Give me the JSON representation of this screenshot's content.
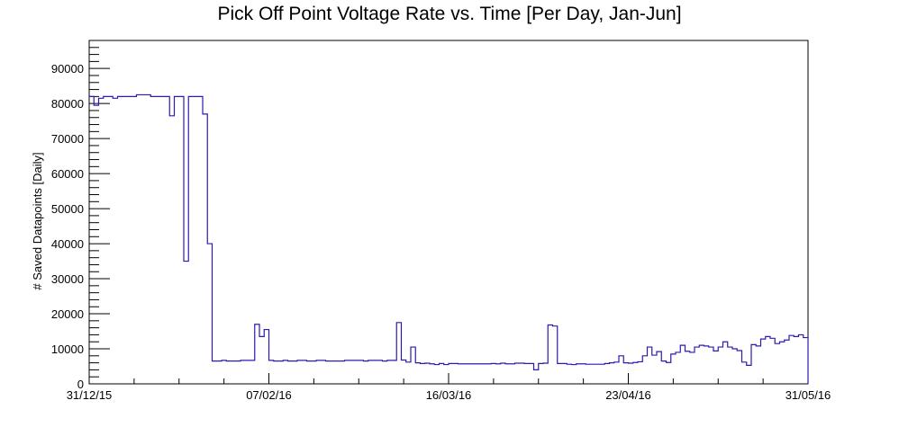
{
  "chart_data": {
    "type": "line",
    "title": "Pick Off Point Voltage Rate vs. Time [Per Day, Jan-Jun]",
    "xlabel": "",
    "ylabel": "# Saved Datapoints [Daily]",
    "xlim": [
      "2015-12-31",
      "2016-05-31"
    ],
    "ylim": [
      0,
      98000
    ],
    "x_ticks": [
      {
        "date": "2015-12-31",
        "label": "31/12/15"
      },
      {
        "date": "2016-02-07",
        "label": "07/02/16"
      },
      {
        "date": "2016-03-16",
        "label": "16/03/16"
      },
      {
        "date": "2016-04-23",
        "label": "23/04/16"
      },
      {
        "date": "2016-05-31",
        "label": "31/05/16"
      }
    ],
    "y_ticks": [
      0,
      10000,
      20000,
      30000,
      40000,
      50000,
      60000,
      70000,
      80000,
      90000
    ],
    "line_color": "#2a1bb0",
    "step": true,
    "series": [
      {
        "start_date": "2015-12-31",
        "values": [
          82000,
          79500,
          81500,
          82000,
          82000,
          81500,
          82000,
          82000,
          82000,
          82000,
          82500,
          82500,
          82500,
          82000,
          82000,
          82000,
          82000,
          76500,
          82000,
          82000,
          35000,
          82000,
          82000,
          82000,
          77000,
          40000,
          6500,
          6500,
          6700,
          6500,
          6500,
          6500,
          6700,
          6700,
          6700,
          17000,
          13500,
          15500,
          6700,
          6500,
          6500,
          6700,
          6500,
          6500,
          6700,
          6700,
          6500,
          6500,
          6700,
          6700,
          6500,
          6500,
          6500,
          6500,
          6700,
          6700,
          6700,
          6700,
          6500,
          6700,
          6700,
          6700,
          6500,
          6700,
          6700,
          17500,
          6800,
          6200,
          10500,
          6000,
          5800,
          5900,
          5700,
          5500,
          5800,
          5500,
          5800,
          5800,
          5700,
          5700,
          5700,
          5700,
          5700,
          5700,
          5700,
          5800,
          5700,
          5900,
          5700,
          5700,
          5900,
          5900,
          5800,
          5800,
          4000,
          5800,
          5900,
          16800,
          16500,
          5800,
          5800,
          5600,
          5500,
          5700,
          5700,
          5600,
          5600,
          5600,
          5600,
          5800,
          6000,
          6200,
          8000,
          6000,
          5900,
          6100,
          6300,
          8000,
          10500,
          8200,
          9200,
          6500,
          6100,
          8500,
          9000,
          11000,
          9300,
          9000,
          10500,
          11000,
          10800,
          10500,
          9400,
          10500,
          12000,
          10500,
          10000,
          9500,
          6200,
          5300,
          11200,
          10800,
          12800,
          13500,
          13000,
          11500,
          12000,
          12500,
          13800,
          13500,
          14000,
          13200
        ],
        "end_value": 0
      }
    ]
  }
}
